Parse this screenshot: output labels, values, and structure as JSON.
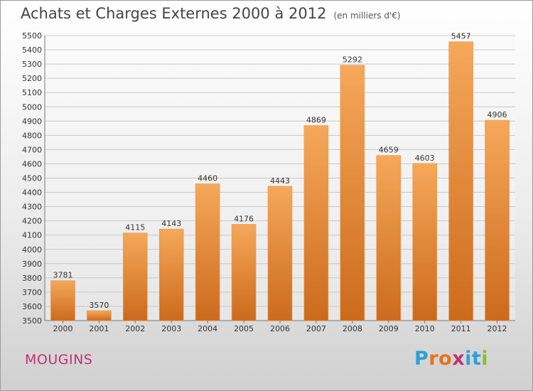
{
  "chart_data": {
    "type": "bar",
    "title": "Achats et Charges Externes 2000 à 2012",
    "subtitle": "(en milliers d'€)",
    "categories": [
      "2000",
      "2001",
      "2002",
      "2003",
      "2004",
      "2005",
      "2006",
      "2007",
      "2008",
      "2009",
      "2010",
      "2011",
      "2012"
    ],
    "values": [
      3781,
      3570,
      4115,
      4143,
      4460,
      4176,
      4443,
      4869,
      5292,
      4659,
      4603,
      5457,
      4906
    ],
    "ylim": [
      3500,
      5500
    ],
    "ytick_step": 100,
    "grid": true,
    "bar_color": "#f0903a"
  },
  "city": "MOUGINS",
  "logo": {
    "text": "Proxiti",
    "letter_colors": [
      "#2ea0d8",
      "#e5731c",
      "#e5731c",
      "#c0346f",
      "#2ea0d8",
      "#2ea0d8",
      "#8cbf2a"
    ]
  }
}
